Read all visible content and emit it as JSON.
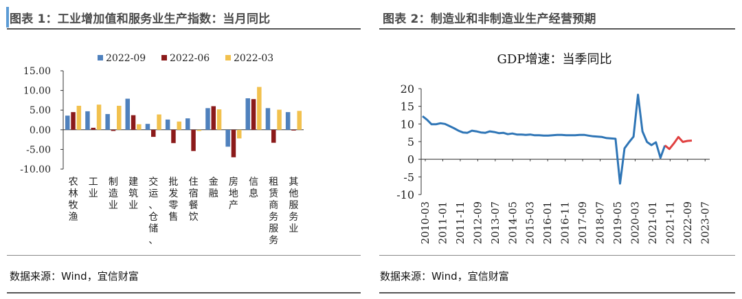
{
  "panel1": {
    "title": "图表 1：工业增加值和服务业生产指数：当月同比",
    "source": "数据来源：Wind，宜信财富"
  },
  "panel2": {
    "title": "图表 2：制造业和非制造业生产经营预期",
    "source": "数据来源：Wind，宜信财富"
  },
  "chart_data": [
    {
      "type": "bar",
      "title": "",
      "categories": [
        "农林牧渔",
        "工业",
        "制造业",
        "建筑业",
        "交运、仓储、",
        "批发零售",
        "住宿餐饮",
        "金融",
        "房地产",
        "信息",
        "租赁商务服务",
        "其他服务业"
      ],
      "series": [
        {
          "name": "2022-09",
          "color": "#4f81bd",
          "values": [
            3.6,
            4.7,
            4.0,
            7.9,
            1.5,
            2.6,
            2.9,
            5.5,
            -4.3,
            8.0,
            5.5,
            4.5
          ]
        },
        {
          "name": "2022-06",
          "color": "#8b1a1a",
          "values": [
            4.5,
            0.5,
            -0.3,
            3.7,
            -1.8,
            -3.4,
            -5.4,
            6.0,
            -7.0,
            7.8,
            -3.3,
            -0.2
          ]
        },
        {
          "name": "2022-03",
          "color": "#f2c14e",
          "values": [
            6.1,
            6.4,
            6.1,
            1.4,
            3.9,
            2.1,
            -0.3,
            5.2,
            -2.2,
            10.9,
            5.1,
            4.8
          ]
        }
      ],
      "ylim": [
        -10,
        15
      ],
      "yticks": [
        "15.00",
        "10.00",
        "5.00",
        "0.00",
        "-5.00",
        "-10.00"
      ],
      "legend": "top"
    },
    {
      "type": "line",
      "title": "GDP增速：当季同比",
      "x_labels": [
        "2010-03",
        "2011-01",
        "2011-11",
        "2012-09",
        "2013-07",
        "2014-05",
        "2015-03",
        "2016-01",
        "2016-11",
        "2017-09",
        "2018-07",
        "2019-05",
        "2020-03",
        "2021-01",
        "2021-11",
        "2022-09",
        "2023-07"
      ],
      "ylim": [
        -10,
        20
      ],
      "yticks": [
        "20",
        "15",
        "10",
        "5",
        "0",
        "-5",
        "-10"
      ],
      "series": [
        {
          "color": "#2e75b6",
          "values": [
            12.2,
            11.2,
            9.9,
            9.9,
            10.2,
            10.0,
            9.4,
            8.8,
            8.1,
            7.6,
            7.5,
            8.1,
            7.9,
            7.6,
            7.5,
            7.9,
            7.7,
            7.4,
            7.5,
            7.1,
            7.3,
            7.0,
            7.0,
            6.9,
            7.0,
            6.8,
            6.8,
            6.7,
            6.7,
            6.8,
            6.9,
            6.9,
            6.8,
            6.8,
            6.8,
            6.9,
            6.9,
            6.7,
            6.5,
            6.4,
            6.3,
            6.0,
            5.9,
            5.8,
            -6.9,
            3.1,
            4.8,
            6.4,
            18.3,
            7.9,
            4.9,
            4.0,
            4.8,
            0.4,
            3.9
          ]
        },
        {
          "color": "#e04040",
          "values": [
            3.9,
            2.9,
            4.5,
            6.3,
            4.9,
            5.2,
            5.3
          ]
        }
      ]
    }
  ]
}
